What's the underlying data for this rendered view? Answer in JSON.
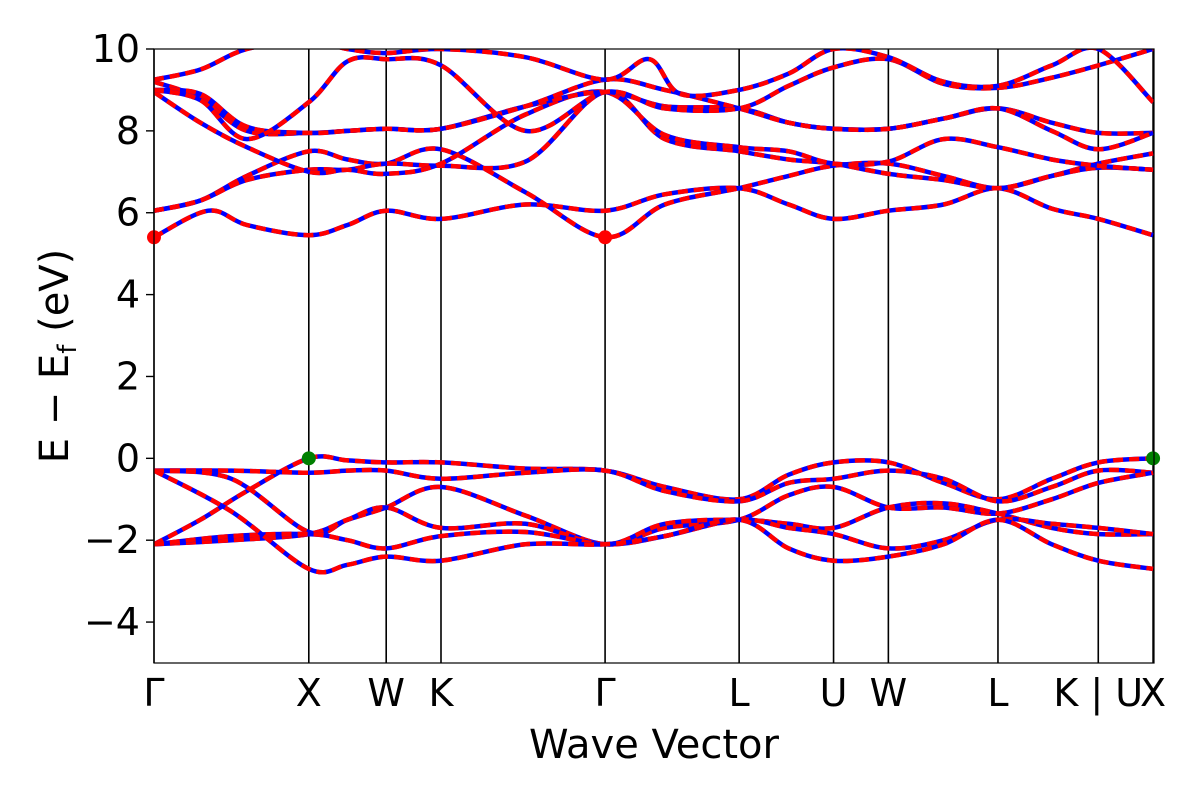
{
  "chart_data": {
    "type": "line",
    "title": "",
    "xlabel": "Wave Vector",
    "ylabel_main": "E − E",
    "ylabel_sub": "f",
    "ylabel_tail": " (eV)",
    "ylim": [
      -5,
      10
    ],
    "yticks": [
      -4,
      -2,
      0,
      2,
      4,
      6,
      8,
      10
    ],
    "ytick_labels": [
      "−4",
      "−2",
      "0",
      "2",
      "4",
      "6",
      "8",
      "10"
    ],
    "x_range": [
      0,
      6.46
    ],
    "kpoints": [
      {
        "label": "Γ",
        "x": 0.0
      },
      {
        "label": "X",
        "x": 1.0
      },
      {
        "label": "W",
        "x": 1.5
      },
      {
        "label": "K",
        "x": 1.854
      },
      {
        "label": "Γ",
        "x": 2.914
      },
      {
        "label": "L",
        "x": 3.78
      },
      {
        "label": "U",
        "x": 4.39
      },
      {
        "label": "W",
        "x": 4.744
      },
      {
        "label": "L",
        "x": 5.452
      },
      {
        "label": "K | U",
        "x": 6.1
      },
      {
        "label": "X",
        "x": 6.454
      }
    ],
    "series_colors": {
      "overlay": "#0000ff",
      "main": "#ff0000"
    },
    "markers": [
      {
        "name": "cbm",
        "color": "#ff0000",
        "points": [
          [
            0.0,
            5.4
          ],
          [
            2.914,
            5.4
          ]
        ]
      },
      {
        "name": "vbm",
        "color": "#008000",
        "points": [
          [
            1.0,
            0.0
          ],
          [
            6.454,
            0.0
          ]
        ]
      }
    ],
    "bands": [
      [
        [
          0,
          -2.1
        ],
        [
          0.3,
          -1.5
        ],
        [
          0.6,
          -0.8
        ],
        [
          1.0,
          0.0
        ],
        [
          1.25,
          -0.05
        ],
        [
          1.5,
          -0.1
        ],
        [
          1.854,
          -0.1
        ],
        [
          2.4,
          -0.25
        ],
        [
          2.914,
          -0.3
        ],
        [
          3.3,
          -0.7
        ],
        [
          3.78,
          -1.0
        ],
        [
          4.1,
          -0.4
        ],
        [
          4.39,
          -0.1
        ],
        [
          4.744,
          -0.1
        ],
        [
          5.1,
          -0.6
        ],
        [
          5.452,
          -1.0
        ],
        [
          5.8,
          -0.5
        ],
        [
          6.1,
          -0.1
        ],
        [
          6.454,
          0.0
        ]
      ],
      [
        [
          0,
          -0.3
        ],
        [
          0.5,
          -0.3
        ],
        [
          1.0,
          -0.35
        ],
        [
          1.25,
          -0.3
        ],
        [
          1.5,
          -0.3
        ],
        [
          1.854,
          -0.5
        ],
        [
          2.4,
          -0.35
        ],
        [
          2.914,
          -0.3
        ],
        [
          3.3,
          -0.8
        ],
        [
          3.78,
          -1.05
        ],
        [
          4.1,
          -0.6
        ],
        [
          4.39,
          -0.5
        ],
        [
          4.744,
          -0.3
        ],
        [
          5.1,
          -0.5
        ],
        [
          5.452,
          -1.05
        ],
        [
          5.8,
          -0.7
        ],
        [
          6.1,
          -0.3
        ],
        [
          6.454,
          -0.35
        ]
      ],
      [
        [
          0,
          -0.3
        ],
        [
          0.5,
          -0.5
        ],
        [
          1.0,
          -1.8
        ],
        [
          1.25,
          -1.5
        ],
        [
          1.5,
          -1.2
        ],
        [
          1.854,
          -0.7
        ],
        [
          2.4,
          -1.4
        ],
        [
          2.914,
          -2.1
        ],
        [
          3.3,
          -1.7
        ],
        [
          3.78,
          -1.5
        ],
        [
          4.1,
          -0.9
        ],
        [
          4.39,
          -0.7
        ],
        [
          4.744,
          -1.2
        ],
        [
          5.1,
          -1.2
        ],
        [
          5.452,
          -1.35
        ],
        [
          5.8,
          -1.0
        ],
        [
          6.1,
          -0.6
        ],
        [
          6.454,
          -0.35
        ]
      ],
      [
        [
          0,
          -2.1
        ],
        [
          0.5,
          -2.0
        ],
        [
          1.0,
          -1.85
        ],
        [
          1.25,
          -1.5
        ],
        [
          1.5,
          -1.2
        ],
        [
          1.854,
          -1.7
        ],
        [
          2.4,
          -1.6
        ],
        [
          2.914,
          -2.1
        ],
        [
          3.3,
          -1.6
        ],
        [
          3.78,
          -1.5
        ],
        [
          4.1,
          -1.6
        ],
        [
          4.39,
          -1.7
        ],
        [
          4.744,
          -1.2
        ],
        [
          5.1,
          -1.1
        ],
        [
          5.452,
          -1.35
        ],
        [
          5.8,
          -1.7
        ],
        [
          6.1,
          -1.85
        ],
        [
          6.454,
          -1.85
        ]
      ],
      [
        [
          0,
          -2.1
        ],
        [
          0.5,
          -1.9
        ],
        [
          1.0,
          -1.85
        ],
        [
          1.25,
          -2.0
        ],
        [
          1.5,
          -2.2
        ],
        [
          1.854,
          -1.9
        ],
        [
          2.4,
          -1.8
        ],
        [
          2.914,
          -2.1
        ],
        [
          3.3,
          -1.9
        ],
        [
          3.78,
          -1.5
        ],
        [
          4.1,
          -1.7
        ],
        [
          4.39,
          -1.85
        ],
        [
          4.744,
          -2.2
        ],
        [
          5.1,
          -2.0
        ],
        [
          5.452,
          -1.5
        ],
        [
          5.8,
          -1.6
        ],
        [
          6.1,
          -1.7
        ],
        [
          6.454,
          -1.85
        ]
      ],
      [
        [
          0,
          -0.3
        ],
        [
          0.5,
          -1.3
        ],
        [
          1.0,
          -2.7
        ],
        [
          1.25,
          -2.6
        ],
        [
          1.5,
          -2.4
        ],
        [
          1.854,
          -2.5
        ],
        [
          2.4,
          -2.1
        ],
        [
          2.914,
          -2.1
        ],
        [
          3.3,
          -1.9
        ],
        [
          3.78,
          -1.5
        ],
        [
          4.1,
          -2.2
        ],
        [
          4.39,
          -2.5
        ],
        [
          4.744,
          -2.4
        ],
        [
          5.1,
          -2.1
        ],
        [
          5.452,
          -1.5
        ],
        [
          5.8,
          -2.1
        ],
        [
          6.1,
          -2.5
        ],
        [
          6.454,
          -2.7
        ]
      ],
      [
        [
          0,
          5.4
        ],
        [
          0.35,
          6.05
        ],
        [
          0.6,
          5.7
        ],
        [
          1.0,
          5.45
        ],
        [
          1.25,
          5.7
        ],
        [
          1.5,
          6.05
        ],
        [
          1.854,
          5.85
        ],
        [
          2.4,
          6.2
        ],
        [
          2.914,
          6.05
        ],
        [
          3.3,
          6.45
        ],
        [
          3.78,
          6.6
        ],
        [
          4.1,
          6.2
        ],
        [
          4.39,
          5.85
        ],
        [
          4.744,
          6.05
        ],
        [
          5.1,
          6.2
        ],
        [
          5.452,
          6.6
        ],
        [
          5.8,
          6.1
        ],
        [
          6.1,
          5.85
        ],
        [
          6.454,
          5.45
        ]
      ],
      [
        [
          0,
          6.05
        ],
        [
          0.3,
          6.3
        ],
        [
          0.6,
          6.9
        ],
        [
          1.0,
          7.5
        ],
        [
          1.25,
          7.3
        ],
        [
          1.5,
          7.2
        ],
        [
          1.854,
          7.55
        ],
        [
          2.4,
          6.5
        ],
        [
          2.914,
          5.4
        ],
        [
          3.3,
          6.2
        ],
        [
          3.78,
          6.6
        ],
        [
          4.1,
          6.9
        ],
        [
          4.39,
          7.15
        ],
        [
          4.744,
          7.2
        ],
        [
          5.1,
          6.9
        ],
        [
          5.452,
          6.6
        ],
        [
          5.8,
          6.9
        ],
        [
          6.1,
          7.2
        ],
        [
          6.454,
          7.45
        ]
      ],
      [
        [
          0,
          6.05
        ],
        [
          0.3,
          6.3
        ],
        [
          0.6,
          6.8
        ],
        [
          1.0,
          7.05
        ],
        [
          1.25,
          7.05
        ],
        [
          1.5,
          7.2
        ],
        [
          1.854,
          7.15
        ],
        [
          2.4,
          7.25
        ],
        [
          2.914,
          8.95
        ],
        [
          3.3,
          7.8
        ],
        [
          3.78,
          7.5
        ],
        [
          4.1,
          7.3
        ],
        [
          4.39,
          7.2
        ],
        [
          4.744,
          6.95
        ],
        [
          5.1,
          6.8
        ],
        [
          5.452,
          6.6
        ],
        [
          5.8,
          6.9
        ],
        [
          6.1,
          7.1
        ],
        [
          6.454,
          7.05
        ]
      ],
      [
        [
          0,
          8.95
        ],
        [
          0.3,
          8.2
        ],
        [
          0.6,
          7.6
        ],
        [
          1.0,
          7.0
        ],
        [
          1.25,
          7.05
        ],
        [
          1.5,
          6.95
        ],
        [
          1.854,
          7.2
        ],
        [
          2.4,
          8.4
        ],
        [
          2.914,
          8.95
        ],
        [
          3.3,
          7.9
        ],
        [
          3.78,
          7.6
        ],
        [
          4.1,
          7.5
        ],
        [
          4.39,
          7.2
        ],
        [
          4.744,
          7.25
        ],
        [
          5.1,
          7.8
        ],
        [
          5.452,
          7.6
        ],
        [
          5.8,
          7.3
        ],
        [
          6.1,
          7.15
        ],
        [
          6.454,
          7.05
        ]
      ],
      [
        [
          0,
          9.2
        ],
        [
          0.3,
          8.8
        ],
        [
          0.6,
          8.0
        ],
        [
          1.0,
          7.95
        ],
        [
          1.25,
          8.0
        ],
        [
          1.5,
          8.05
        ],
        [
          1.854,
          8.05
        ],
        [
          2.4,
          8.6
        ],
        [
          2.914,
          8.95
        ],
        [
          3.3,
          8.6
        ],
        [
          3.78,
          8.55
        ],
        [
          4.1,
          8.2
        ],
        [
          4.39,
          8.05
        ],
        [
          4.744,
          8.05
        ],
        [
          5.1,
          8.3
        ],
        [
          5.452,
          8.55
        ],
        [
          5.8,
          8.2
        ],
        [
          6.1,
          7.95
        ],
        [
          6.454,
          7.95
        ]
      ],
      [
        [
          0,
          9.0
        ],
        [
          0.3,
          8.9
        ],
        [
          0.6,
          8.1
        ],
        [
          1.0,
          7.95
        ],
        [
          1.25,
          8.0
        ],
        [
          1.5,
          8.05
        ],
        [
          1.854,
          8.05
        ],
        [
          2.4,
          8.6
        ],
        [
          2.914,
          9.25
        ],
        [
          3.3,
          9.0
        ],
        [
          3.78,
          8.55
        ],
        [
          4.1,
          8.2
        ],
        [
          4.39,
          8.05
        ],
        [
          4.744,
          8.05
        ],
        [
          5.1,
          8.3
        ],
        [
          5.452,
          8.55
        ],
        [
          5.8,
          8.0
        ],
        [
          6.1,
          7.55
        ],
        [
          6.454,
          7.95
        ]
      ],
      [
        [
          0,
          9.0
        ],
        [
          0.3,
          8.75
        ],
        [
          0.6,
          7.8
        ],
        [
          1.0,
          8.7
        ],
        [
          1.25,
          9.7
        ],
        [
          1.5,
          9.75
        ],
        [
          1.854,
          9.6
        ],
        [
          2.4,
          8.0
        ],
        [
          2.914,
          8.95
        ],
        [
          3.3,
          8.55
        ],
        [
          3.78,
          8.55
        ],
        [
          4.1,
          9.1
        ],
        [
          4.39,
          9.55
        ],
        [
          4.744,
          9.75
        ],
        [
          5.1,
          9.15
        ],
        [
          5.452,
          9.05
        ],
        [
          5.8,
          9.3
        ],
        [
          6.1,
          9.6
        ],
        [
          6.454,
          10.0
        ]
      ],
      [
        [
          0,
          9.25
        ],
        [
          0.3,
          9.5
        ],
        [
          0.6,
          10.0
        ],
        [
          1.0,
          10.2
        ],
        [
          1.25,
          10.0
        ],
        [
          1.5,
          9.9
        ],
        [
          1.854,
          10.0
        ],
        [
          2.4,
          9.8
        ],
        [
          2.914,
          9.25
        ],
        [
          3.2,
          9.75
        ],
        [
          3.4,
          8.9
        ],
        [
          3.78,
          9.0
        ],
        [
          4.1,
          9.4
        ],
        [
          4.39,
          10.0
        ],
        [
          4.744,
          9.8
        ],
        [
          5.1,
          9.2
        ],
        [
          5.452,
          9.1
        ],
        [
          5.8,
          9.6
        ],
        [
          6.1,
          10.0
        ],
        [
          6.454,
          8.7
        ]
      ]
    ]
  }
}
